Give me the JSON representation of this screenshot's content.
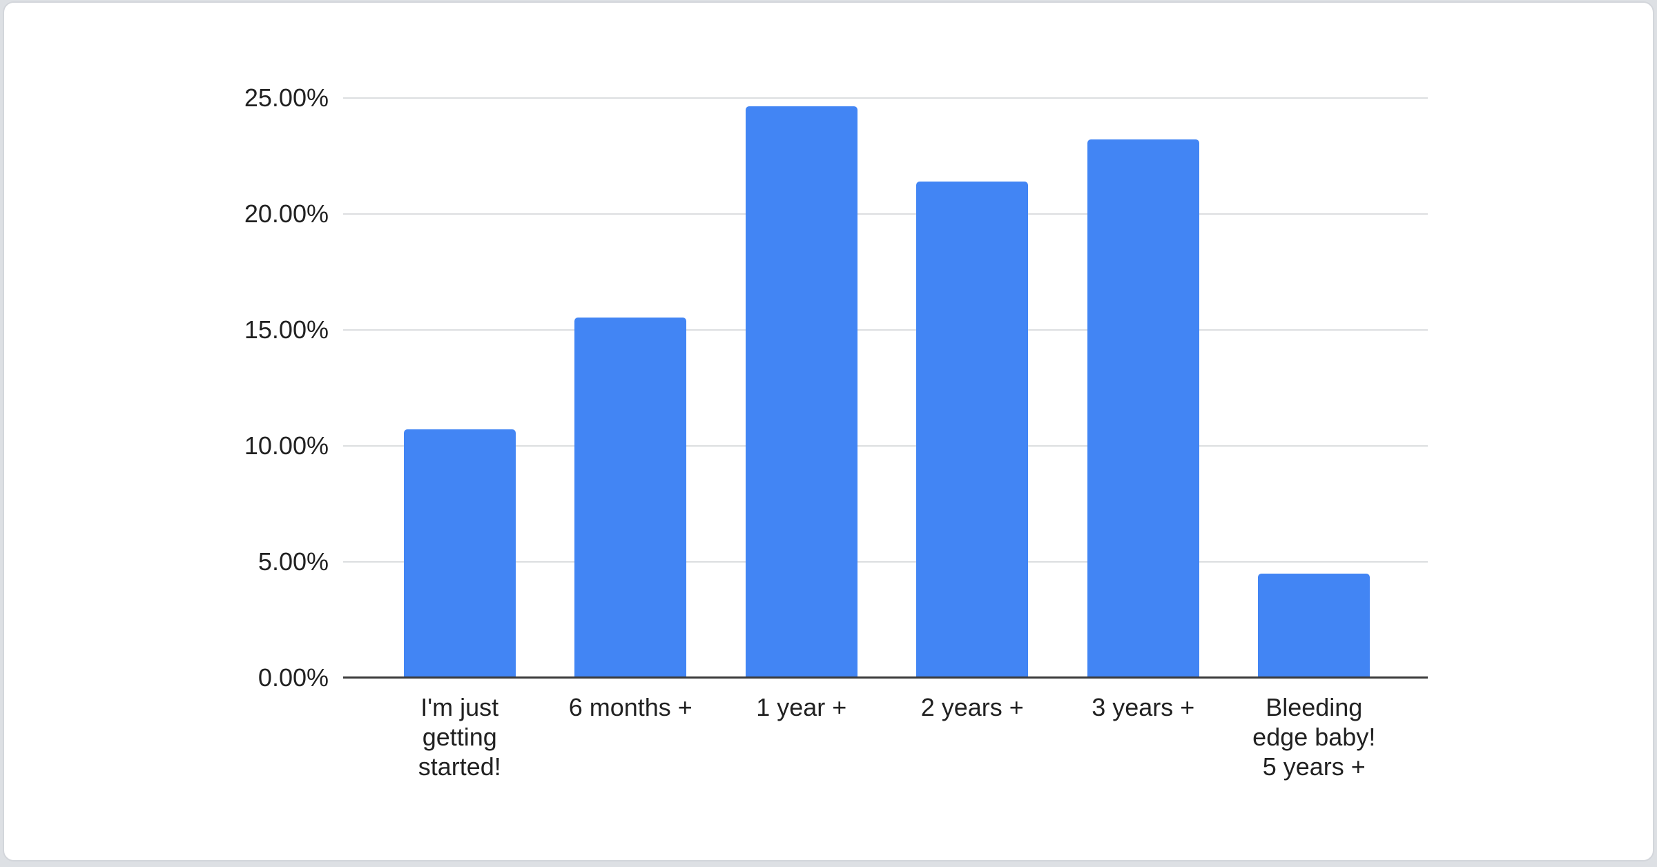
{
  "chart_data": {
    "type": "bar",
    "title": "",
    "xlabel": "",
    "ylabel": "",
    "categories": [
      "I'm just\ngetting\nstarted!",
      "6 months +",
      "1 year +",
      "2 years +",
      "3 years +",
      "Bleeding\nedge baby!\n5 years +"
    ],
    "values": [
      10.7,
      15.55,
      24.65,
      21.4,
      23.2,
      4.5
    ],
    "value_unit": "percent",
    "ylim": [
      0,
      25
    ],
    "y_tick_step": 5,
    "y_tick_labels_top_to_bottom": [
      "25.00%",
      "20.00%",
      "15.00%",
      "10.00%",
      "5.00%",
      "0.00%"
    ],
    "grid": true,
    "legend_position": "none",
    "colors": {
      "bar": "#4285f4",
      "gridline": "#dcdee0",
      "baseline": "#3a3a3a",
      "label_text": "#212121",
      "card_background": "#ffffff",
      "card_border": "#d3d6db",
      "page_background": "#dde0e4"
    }
  }
}
